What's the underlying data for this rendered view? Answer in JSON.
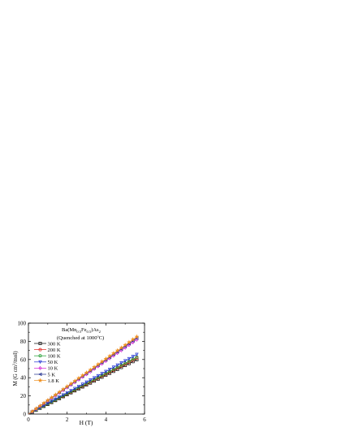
{
  "chart_data": {
    "type": "line",
    "title_parts": {
      "base": "Ba(Mn",
      "sub1": "0.5",
      "mid": "Fe",
      "sub2": "0.5",
      "tail": ")As",
      "sub3": "2"
    },
    "subtitle_parts": {
      "text": "(Quenched at 1000",
      "sup": "o",
      "unit": "C)"
    },
    "xlabel": "H (T)",
    "ylabel_parts": {
      "pre": "M (G cm",
      "sup": "3",
      "post": "/mol)"
    },
    "xlim": [
      0,
      6
    ],
    "ylim": [
      0,
      100
    ],
    "x_ticks": [
      0,
      2,
      4,
      6
    ],
    "y_ticks": [
      0,
      20,
      40,
      60,
      80,
      100
    ],
    "grid": false,
    "legend_position": "upper-left",
    "series": [
      {
        "name": "300 K",
        "marker": "square",
        "color": "#000000",
        "slope": 10.7
      },
      {
        "name": "200 K",
        "marker": "circle",
        "color": "#e0201b",
        "slope": 11.0
      },
      {
        "name": "100 K",
        "marker": "circle",
        "color": "#1a9a2a",
        "slope": 11.2
      },
      {
        "name": "50 K",
        "marker": "triangle-down",
        "color": "#1d2fd1",
        "slope": 11.7
      },
      {
        "name": "10 K",
        "marker": "diamond",
        "color": "#d21fd2",
        "slope": 14.6
      },
      {
        "name": "5 K",
        "marker": "triangle-left",
        "color": "#1b2a8c",
        "slope": 14.9
      },
      {
        "name": "1.8 K",
        "marker": "star",
        "color": "#f09020",
        "slope": 15.2
      }
    ],
    "x": [
      0.2,
      0.4,
      0.6,
      0.8,
      1.0,
      1.2,
      1.4,
      1.6,
      1.8,
      2.0,
      2.2,
      2.4,
      2.6,
      2.8,
      3.0,
      3.2,
      3.4,
      3.6,
      3.8,
      4.0,
      4.2,
      4.4,
      4.6,
      4.8,
      5.0,
      5.2,
      5.4,
      5.6
    ]
  }
}
